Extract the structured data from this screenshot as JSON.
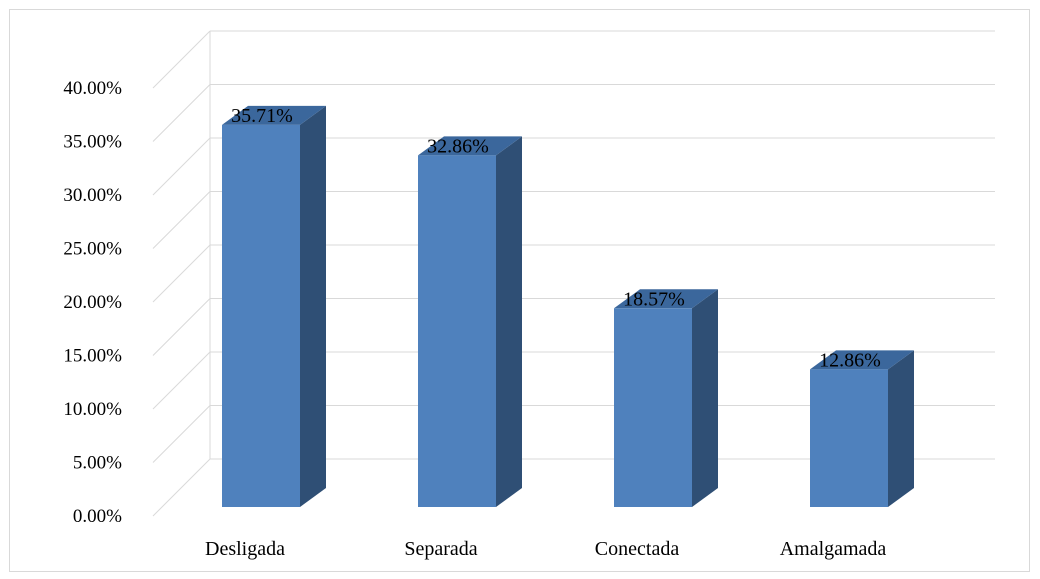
{
  "chart_data": {
    "type": "bar",
    "categories": [
      "Desligada",
      "Separada",
      "Conectada",
      "Amalgamada"
    ],
    "values": [
      35.71,
      32.86,
      18.57,
      12.86
    ],
    "data_labels": [
      "35.71%",
      "32.86%",
      "18.57%",
      "12.86%"
    ],
    "ylim": [
      0,
      40
    ],
    "y_ticks": [
      0,
      5,
      10,
      15,
      20,
      25,
      30,
      35,
      40
    ],
    "y_tick_labels": [
      "0.00%",
      "5.00%",
      "10.00%",
      "15.00%",
      "20.00%",
      "25.00%",
      "30.00%",
      "35.00%",
      "40.00%"
    ],
    "grid": true,
    "style": "3d-column",
    "colors": {
      "bar_front": "#4f81bd",
      "bar_side": "#2f4f75",
      "bar_top": "#3b679c",
      "grid": "#d9d9d9"
    }
  }
}
